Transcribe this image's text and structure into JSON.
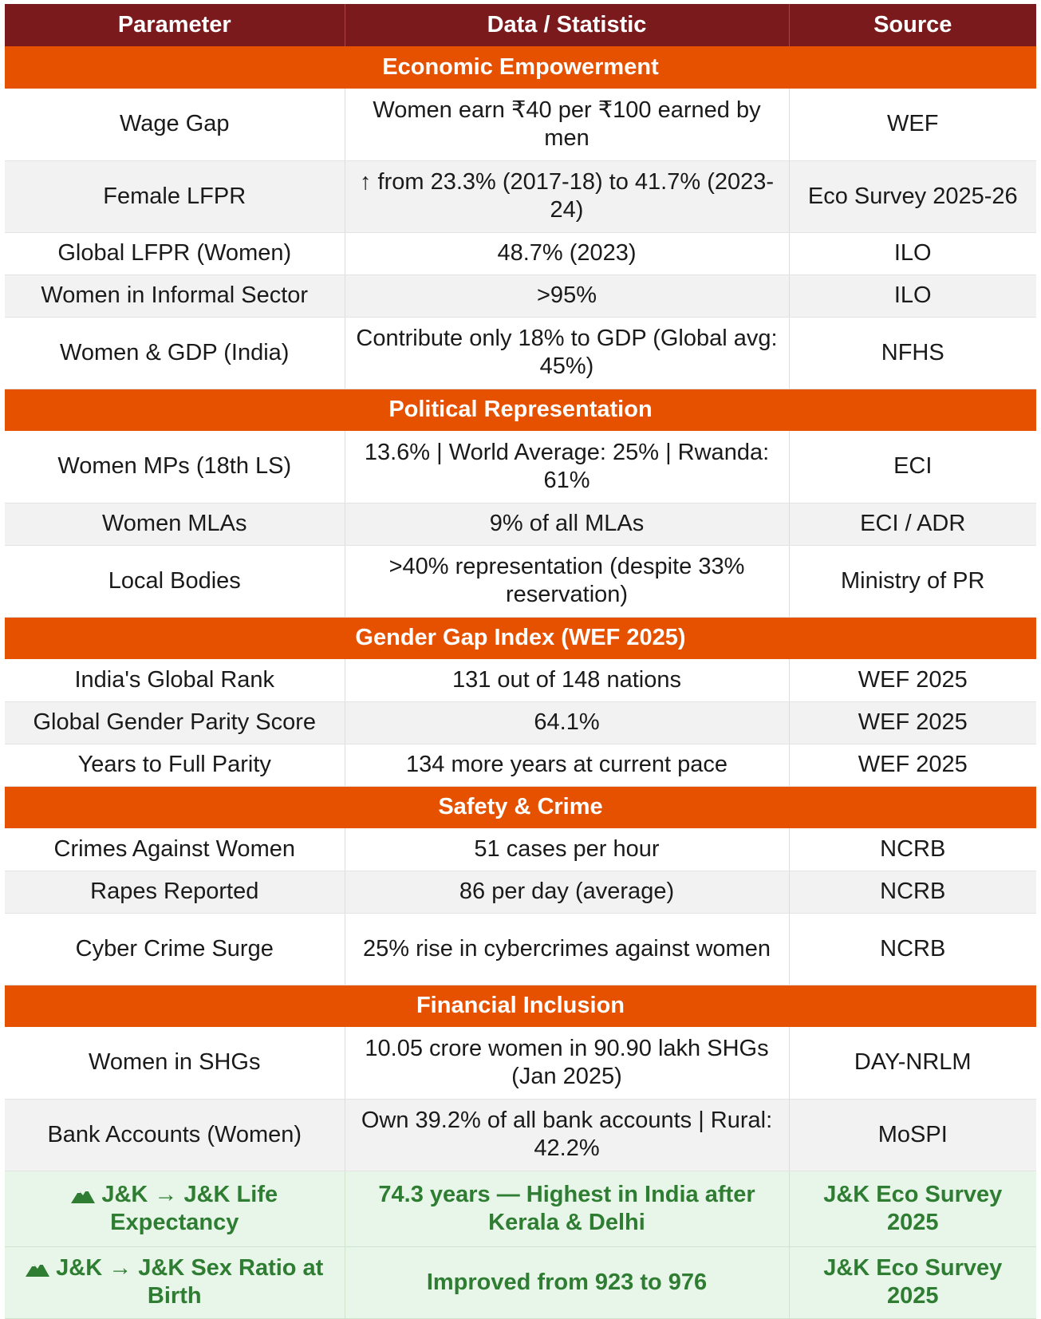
{
  "header": [
    "Parameter",
    "Data / Statistic",
    "Source"
  ],
  "sections": [
    {
      "title": "Economic Empowerment",
      "rows": [
        [
          "Wage Gap",
          "Women earn ₹40 per ₹100 earned by men",
          "WEF"
        ],
        [
          "Female LFPR",
          "↑ from 23.3% (2017-18) to 41.7% (2023-24)",
          "Eco Survey 2025-26"
        ],
        [
          "Global LFPR (Women)",
          "48.7% (2023)",
          "ILO"
        ],
        [
          "Women in Informal Sector",
          ">95%",
          "ILO"
        ],
        [
          "Women & GDP (India)",
          "Contribute only 18% to GDP (Global avg: 45%)",
          "NFHS"
        ]
      ]
    },
    {
      "title": "Political Representation",
      "rows": [
        [
          "Women MPs (18th LS)",
          "13.6% | World Average: 25% | Rwanda: 61%",
          "ECI"
        ],
        [
          "Women MLAs",
          "9% of all MLAs",
          "ECI / ADR"
        ],
        [
          "Local Bodies",
          ">40% representation (despite 33% reservation)",
          "Ministry of PR"
        ]
      ]
    },
    {
      "title": "Gender Gap Index (WEF 2025)",
      "rows": [
        [
          "India's Global Rank",
          "131 out of 148 nations",
          "WEF 2025"
        ],
        [
          "Global Gender Parity Score",
          "64.1%",
          "WEF 2025"
        ],
        [
          "Years to Full Parity",
          "134 more years at current pace",
          "WEF 2025"
        ]
      ]
    },
    {
      "title": "Safety & Crime",
      "rows": [
        [
          "Crimes Against Women",
          "51 cases per hour",
          "NCRB"
        ],
        [
          "Rapes Reported",
          "86 per day (average)",
          "NCRB"
        ],
        [
          "Cyber Crime Surge",
          "25% rise in cybercrimes against women",
          "NCRB"
        ]
      ]
    },
    {
      "title": "Financial Inclusion",
      "rows": [
        [
          "Women in SHGs",
          "10.05 crore women in 90.90 lakh SHGs (Jan 2025)",
          "DAY-NRLM"
        ],
        [
          "Bank Accounts (Women)",
          "Own 39.2% of all bank accounts | Rural: 42.2%",
          "MoSPI"
        ]
      ]
    }
  ],
  "highlighted_rows": [
    [
      "J&K → J&K Life Expectancy",
      "74.3 years — Highest in India after Kerala & Delhi",
      "J&K Eco Survey 2025"
    ],
    [
      "J&K → J&K Sex Ratio at Birth",
      "Improved from 923 to 976",
      "J&K Eco Survey 2025"
    ]
  ]
}
